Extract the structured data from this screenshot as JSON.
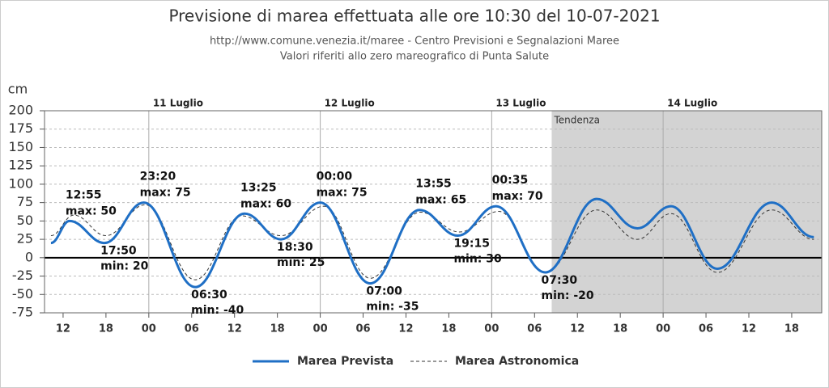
{
  "chart_data": {
    "type": "line",
    "title": "Previsione di marea effettuata alle ore 10:30 del 10-07-2021",
    "subtitle": [
      "http://www.comune.venezia.it/maree - Centro Previsioni e Segnalazioni Maree",
      "Valori riferiti allo zero mareografico di Punta Salute"
    ],
    "y_label": "cm",
    "xlim": [
      9.4,
      118.2
    ],
    "xticks": [
      12,
      18,
      {
        "value": 24,
        "label": "00"
      },
      {
        "value": 30,
        "label": "06"
      },
      {
        "value": 36,
        "label": "12"
      },
      {
        "value": 42,
        "label": "18"
      },
      {
        "value": 48,
        "label": "00"
      },
      {
        "value": 54,
        "label": "06"
      },
      {
        "value": 60,
        "label": "12"
      },
      {
        "value": 66,
        "label": "18"
      },
      {
        "value": 72,
        "label": "00"
      },
      {
        "value": 78,
        "label": "06"
      },
      {
        "value": 84,
        "label": "12"
      },
      {
        "value": 90,
        "label": "18"
      },
      {
        "value": 96,
        "label": "00"
      },
      {
        "value": 102,
        "label": "06"
      },
      {
        "value": 108,
        "label": "12"
      },
      {
        "value": 114,
        "label": "18"
      }
    ],
    "ylim": [
      -75,
      200
    ],
    "yticks": [
      -75,
      -50,
      -25,
      0,
      25,
      50,
      75,
      100,
      125,
      150,
      175,
      200
    ],
    "grid": true,
    "day_labels": [
      {
        "x": 24,
        "label": "11 Luglio"
      },
      {
        "x": 48,
        "label": "12 Luglio"
      },
      {
        "x": 72,
        "label": "13 Luglio"
      },
      {
        "x": 96,
        "label": "14 Luglio"
      }
    ],
    "tendenza": {
      "start": 80.4,
      "label": "Tendenza"
    },
    "series": [
      {
        "name": "Marea Prevista",
        "color": "#1f6fc5",
        "dashed": false,
        "x": [
          10.3,
          12.9,
          17.8,
          23.3,
          30.5,
          37.4,
          42.5,
          48,
          55,
          61.9,
          67.25,
          72.6,
          79.5,
          86.7,
          92.4,
          97.1,
          103.6,
          111.2,
          117.1
        ],
        "values": [
          20,
          50,
          20,
          75,
          -40,
          60,
          25,
          75,
          -35,
          65,
          30,
          70,
          -20,
          80,
          40,
          70,
          -15,
          75,
          28
        ]
      },
      {
        "name": "Marea Astronomica",
        "color": "#333333",
        "dashed": true,
        "x": [
          10.3,
          13.5,
          18,
          23.5,
          30.5,
          37,
          42.5,
          48.5,
          55,
          62,
          67.5,
          73,
          79.5,
          86.7,
          92.4,
          97.1,
          103.6,
          111.2,
          117.1
        ],
        "values": [
          30,
          58,
          30,
          72,
          -30,
          57,
          30,
          70,
          -28,
          62,
          35,
          63,
          -20,
          65,
          25,
          60,
          -20,
          65,
          25
        ]
      }
    ],
    "annotations": [
      {
        "x": 12.9,
        "y": 50,
        "kind": "max",
        "time": "12:55",
        "text": "max: 50"
      },
      {
        "x": 17.8,
        "y": 20,
        "kind": "min",
        "time": "17:50",
        "text": "min: 20"
      },
      {
        "x": 23.3,
        "y": 75,
        "kind": "max",
        "time": "23:20",
        "text": "max: 75"
      },
      {
        "x": 30.5,
        "y": -40,
        "kind": "min",
        "time": "06:30",
        "text": "min: -40"
      },
      {
        "x": 37.4,
        "y": 60,
        "kind": "max",
        "time": "13:25",
        "text": "max: 60"
      },
      {
        "x": 42.5,
        "y": 25,
        "kind": "min",
        "time": "18:30",
        "text": "min: 25"
      },
      {
        "x": 48,
        "y": 75,
        "kind": "max",
        "time": "00:00",
        "text": "max: 75"
      },
      {
        "x": 55,
        "y": -35,
        "kind": "min",
        "time": "07:00",
        "text": "min: -35"
      },
      {
        "x": 61.9,
        "y": 65,
        "kind": "max",
        "time": "13:55",
        "text": "max: 65"
      },
      {
        "x": 67.25,
        "y": 30,
        "kind": "min",
        "time": "19:15",
        "text": "min: 30"
      },
      {
        "x": 72.6,
        "y": 70,
        "kind": "max",
        "time": "00:35",
        "text": "max: 70"
      },
      {
        "x": 79.5,
        "y": -20,
        "kind": "min",
        "time": "07:30",
        "text": "min: -20"
      }
    ]
  }
}
